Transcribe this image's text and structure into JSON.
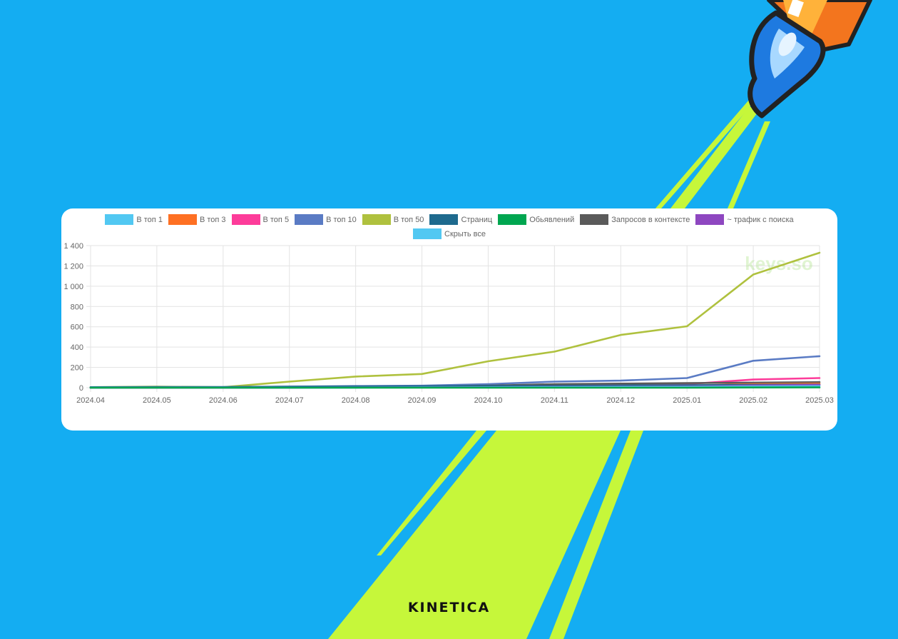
{
  "brand": "KINETICA",
  "watermark": "keys.so",
  "colors": {
    "background": "#14adf2",
    "beam": "#c6f73a",
    "card": "#ffffff"
  },
  "icons": [
    "rocket-icon"
  ],
  "legend": [
    {
      "label": "В топ 1",
      "color": "#52c8f2"
    },
    {
      "label": "В топ 3",
      "color": "#fe7023"
    },
    {
      "label": "В топ 5",
      "color": "#fd3c9a"
    },
    {
      "label": "В топ 10",
      "color": "#5a7bc4"
    },
    {
      "label": "В топ 50",
      "color": "#afc13e"
    },
    {
      "label": "Страниц",
      "color": "#1e6a8e"
    },
    {
      "label": "Обьявлений",
      "color": "#00a650"
    },
    {
      "label": "Запросов в контексте",
      "color": "#5a5a5a"
    },
    {
      "label": "~ трафик с поиска",
      "color": "#8e47c0"
    },
    {
      "label": "Скрыть все",
      "color": "#52c8f2"
    }
  ],
  "chart_data": {
    "type": "line",
    "x": [
      "2024.04",
      "2024.05",
      "2024.06",
      "2024.07",
      "2024.08",
      "2024.09",
      "2024.10",
      "2024.11",
      "2024.12",
      "2025.01",
      "2025.02",
      "2025.03"
    ],
    "y_ticks": [
      "0",
      "200",
      "400",
      "600",
      "800",
      "1 000",
      "1 200",
      "1 400"
    ],
    "ylim": [
      0,
      1400
    ],
    "grid": true,
    "legend_position": "top",
    "series": [
      {
        "name": "В топ 1",
        "color": "#52c8f2",
        "values": [
          0,
          0,
          0,
          0,
          1,
          2,
          3,
          5,
          6,
          8,
          12,
          15
        ]
      },
      {
        "name": "В топ 3",
        "color": "#fe7023",
        "values": [
          0,
          0,
          0,
          2,
          4,
          6,
          10,
          15,
          18,
          20,
          35,
          40
        ]
      },
      {
        "name": "В топ 5",
        "color": "#fd3c9a",
        "values": [
          0,
          0,
          0,
          3,
          6,
          10,
          18,
          28,
          32,
          35,
          80,
          95
        ]
      },
      {
        "name": "В топ 10",
        "color": "#5a7bc4",
        "values": [
          2,
          3,
          4,
          10,
          16,
          20,
          35,
          60,
          70,
          95,
          265,
          310
        ]
      },
      {
        "name": "В топ 50",
        "color": "#afc13e",
        "values": [
          5,
          10,
          5,
          60,
          110,
          135,
          260,
          355,
          520,
          605,
          1115,
          1330
        ]
      },
      {
        "name": "Страниц",
        "color": "#1e6a8e",
        "values": [
          5,
          6,
          6,
          10,
          12,
          14,
          16,
          18,
          22,
          24,
          28,
          30
        ]
      },
      {
        "name": "Обьявлений",
        "color": "#00a650",
        "values": [
          0,
          0,
          0,
          0,
          0,
          0,
          0,
          0,
          0,
          0,
          2,
          3
        ]
      },
      {
        "name": "Запросов в контексте",
        "color": "#5a5a5a",
        "values": [
          0,
          2,
          3,
          5,
          8,
          12,
          20,
          35,
          40,
          45,
          50,
          55
        ]
      },
      {
        "name": "~ трафик с поиска",
        "color": "#8e47c0",
        "values": [
          0,
          0,
          0,
          1,
          2,
          3,
          5,
          8,
          10,
          12,
          22,
          28
        ]
      }
    ]
  }
}
